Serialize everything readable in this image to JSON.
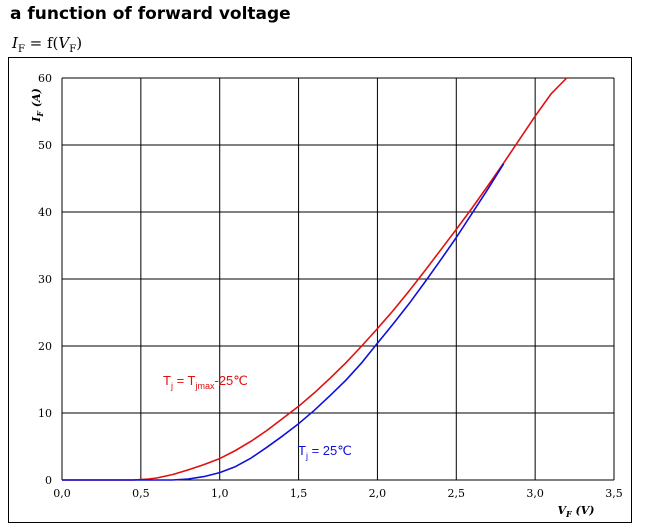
{
  "header": {
    "title": "a function of forward voltage",
    "formula": "I_F = f(V_F)"
  },
  "chart_data": {
    "type": "line",
    "xlabel": "V_F (V)",
    "ylabel": "I_F (A)",
    "xlim": [
      0,
      3.5
    ],
    "ylim": [
      0,
      60
    ],
    "x_ticks": [
      "0,0",
      "0,5",
      "1,0",
      "1,5",
      "2,0",
      "2,5",
      "3,0",
      "3,5"
    ],
    "y_ticks": [
      "0",
      "10",
      "20",
      "30",
      "40",
      "50",
      "60"
    ],
    "grid": true,
    "series": [
      {
        "name": "T_j = T_jmax-25°C",
        "color": "#e01010",
        "x": [
          0,
          0.45,
          0.55,
          0.6,
          0.7,
          0.8,
          0.9,
          1.0,
          1.1,
          1.2,
          1.3,
          1.4,
          1.5,
          1.6,
          1.7,
          1.8,
          1.9,
          2.0,
          2.1,
          2.2,
          2.3,
          2.4,
          2.5,
          2.6,
          2.7,
          2.8,
          2.9,
          3.0,
          3.1,
          3.2
        ],
        "y": [
          0,
          0,
          0.15,
          0.3,
          0.8,
          1.5,
          2.3,
          3.2,
          4.4,
          5.8,
          7.4,
          9.2,
          11.0,
          13.0,
          15.2,
          17.5,
          20.0,
          22.6,
          25.3,
          28.2,
          31.2,
          34.3,
          37.4,
          40.6,
          43.9,
          47.3,
          50.8,
          54.3,
          57.6,
          60.0
        ]
      },
      {
        "name": "T_j = 25°C",
        "color": "#1010d8",
        "x": [
          0,
          0.7,
          0.8,
          0.9,
          1.0,
          1.1,
          1.2,
          1.3,
          1.4,
          1.5,
          1.6,
          1.7,
          1.8,
          1.9,
          2.0,
          2.1,
          2.2,
          2.3,
          2.4,
          2.5,
          2.6,
          2.7,
          2.8
        ],
        "y": [
          0,
          0,
          0.15,
          0.5,
          1.1,
          2.0,
          3.3,
          4.9,
          6.6,
          8.4,
          10.4,
          12.6,
          14.9,
          17.5,
          20.4,
          23.3,
          26.3,
          29.5,
          32.8,
          36.2,
          39.8,
          43.4,
          47.2
        ]
      }
    ],
    "annotations": [
      {
        "text": "T",
        "sub": "j",
        "rest": " = T",
        "sub2": "jmax",
        "tail": "-25℃",
        "color": "#e01010"
      },
      {
        "text": "T",
        "sub": "j",
        "rest": " = 25℃",
        "color": "#1010d8"
      }
    ]
  }
}
